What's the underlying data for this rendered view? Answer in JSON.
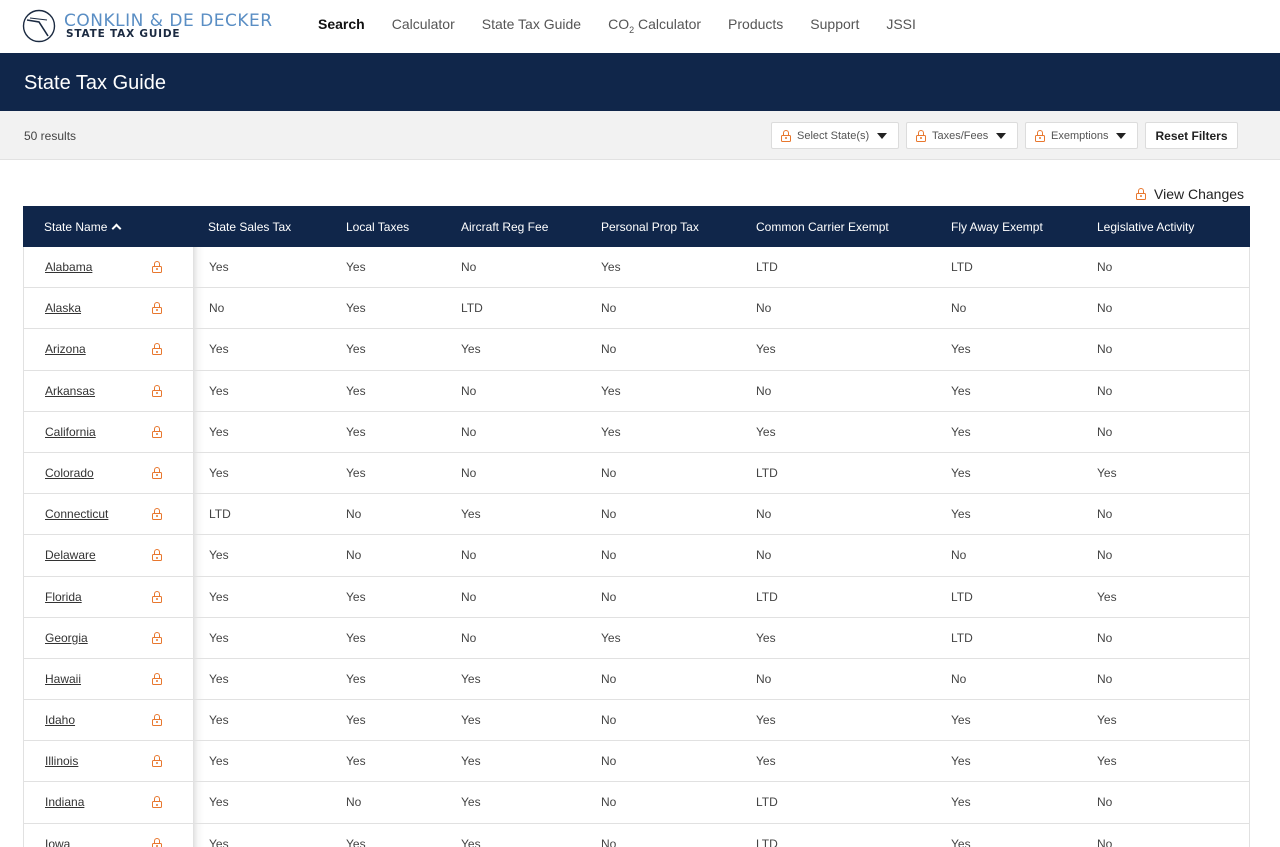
{
  "brand": {
    "name_line1": "CONKLIN & DE DECKER",
    "name_line2": "STATE TAX GUIDE",
    "colors": {
      "navy": "#10264a",
      "accent_blue": "#5a8ec4",
      "lock_orange": "#e8772e"
    }
  },
  "nav": {
    "items": [
      {
        "label": "Search",
        "active": true
      },
      {
        "label": "Calculator"
      },
      {
        "label": "State Tax Guide"
      },
      {
        "label": "CO",
        "sub": "2",
        "suffix": " Calculator"
      },
      {
        "label": "Products"
      },
      {
        "label": "Support"
      },
      {
        "label": "JSSI"
      }
    ]
  },
  "banner": {
    "title": "State Tax Guide"
  },
  "filters": {
    "result_count": "50 results",
    "select_states": "Select State(s)",
    "taxes_fees": "Taxes/Fees",
    "exemptions": "Exemptions",
    "reset": "Reset Filters",
    "icon": "lock-icon"
  },
  "view_changes": "View Changes",
  "table": {
    "headers": [
      "State Name",
      "State Sales Tax",
      "Local Taxes",
      "Aircraft Reg Fee",
      "Personal Prop Tax",
      "Common Carrier Exempt",
      "Fly Away Exempt",
      "Legislative Activity"
    ],
    "rows": [
      [
        "Alabama",
        "Yes",
        "Yes",
        "No",
        "Yes",
        "LTD",
        "LTD",
        "No"
      ],
      [
        "Alaska",
        "No",
        "Yes",
        "LTD",
        "No",
        "No",
        "No",
        "No"
      ],
      [
        "Arizona",
        "Yes",
        "Yes",
        "Yes",
        "No",
        "Yes",
        "Yes",
        "No"
      ],
      [
        "Arkansas",
        "Yes",
        "Yes",
        "No",
        "Yes",
        "No",
        "Yes",
        "No"
      ],
      [
        "California",
        "Yes",
        "Yes",
        "No",
        "Yes",
        "Yes",
        "Yes",
        "No"
      ],
      [
        "Colorado",
        "Yes",
        "Yes",
        "No",
        "No",
        "LTD",
        "Yes",
        "Yes"
      ],
      [
        "Connecticut",
        "LTD",
        "No",
        "Yes",
        "No",
        "No",
        "Yes",
        "No"
      ],
      [
        "Delaware",
        "Yes",
        "No",
        "No",
        "No",
        "No",
        "No",
        "No"
      ],
      [
        "Florida",
        "Yes",
        "Yes",
        "No",
        "No",
        "LTD",
        "LTD",
        "Yes"
      ],
      [
        "Georgia",
        "Yes",
        "Yes",
        "No",
        "Yes",
        "Yes",
        "LTD",
        "No"
      ],
      [
        "Hawaii",
        "Yes",
        "Yes",
        "Yes",
        "No",
        "No",
        "No",
        "No"
      ],
      [
        "Idaho",
        "Yes",
        "Yes",
        "Yes",
        "No",
        "Yes",
        "Yes",
        "Yes"
      ],
      [
        "Illinois",
        "Yes",
        "Yes",
        "Yes",
        "No",
        "Yes",
        "Yes",
        "Yes"
      ],
      [
        "Indiana",
        "Yes",
        "No",
        "Yes",
        "No",
        "LTD",
        "Yes",
        "No"
      ],
      [
        "Iowa",
        "Yes",
        "Yes",
        "Yes",
        "No",
        "LTD",
        "Yes",
        "No"
      ]
    ]
  }
}
